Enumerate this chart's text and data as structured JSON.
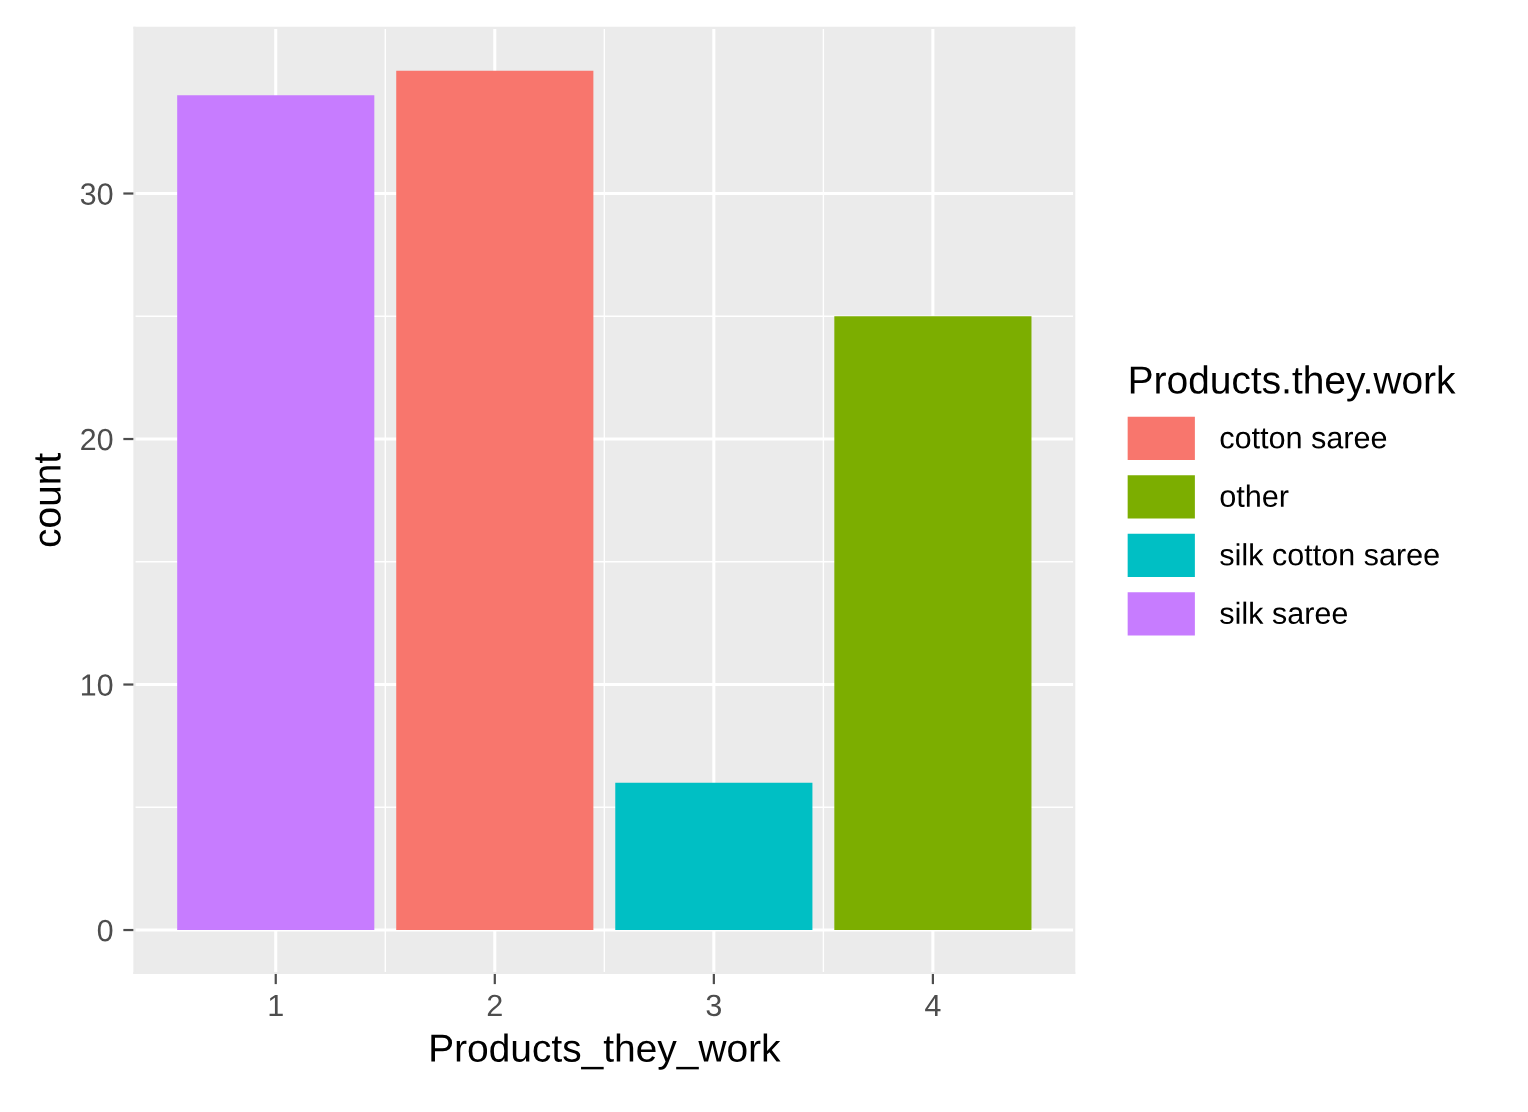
{
  "chart_data": {
    "type": "bar",
    "xlabel": "Products_they_work",
    "ylabel": "count",
    "legend_title": "Products.they.work",
    "series": [
      {
        "name": "cotton saree",
        "color": "#f8766d",
        "x": [
          2
        ],
        "values": [
          35
        ]
      },
      {
        "name": "other",
        "color": "#7cae00",
        "x": [
          4
        ],
        "values": [
          25
        ]
      },
      {
        "name": "silk cotton saree",
        "color": "#00bfc4",
        "x": [
          3
        ],
        "values": [
          6
        ]
      },
      {
        "name": "silk saree",
        "color": "#c77cff",
        "x": [
          1
        ],
        "values": [
          34
        ]
      }
    ],
    "xlim": [
      0.355,
      4.645
    ],
    "xticks": [
      1,
      2,
      3,
      4
    ],
    "ylim": [
      -1.75,
      36.75
    ],
    "yticks": [
      0,
      10,
      20,
      30
    ],
    "grid": true,
    "legend": "right"
  }
}
